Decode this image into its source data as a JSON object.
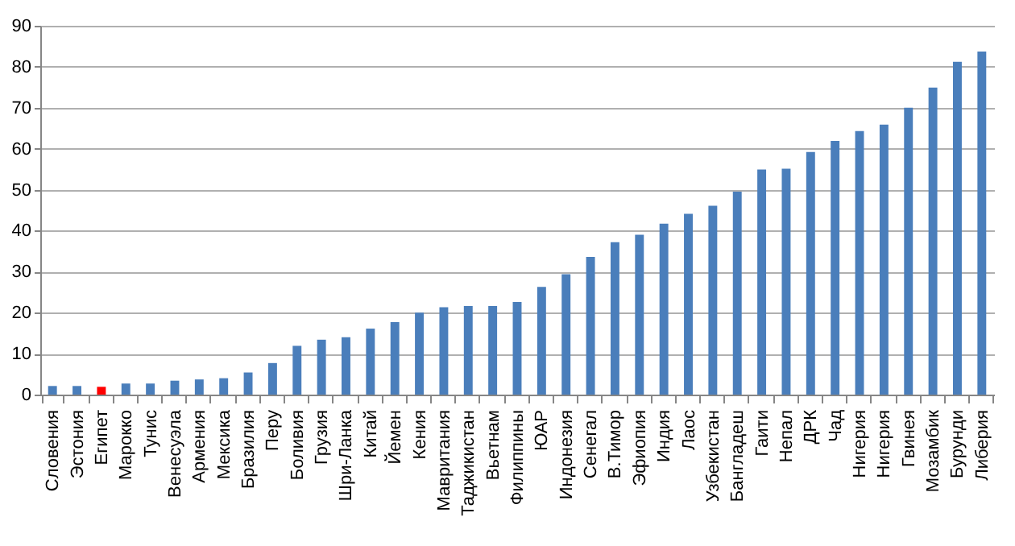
{
  "chart_data": {
    "type": "bar",
    "categories": [
      "Словения",
      "Эстония",
      "Египет",
      "Марокко",
      "Тунис",
      "Венесуэла",
      "Армения",
      "Мексика",
      "Бразилия",
      "Перу",
      "Боливия",
      "Грузия",
      "Шри-Ланка",
      "Китай",
      "Йемен",
      "Кения",
      "Мавритания",
      "Таджикистан",
      "Вьетнам",
      "Филиппины",
      "ЮАР",
      "Индонезия",
      "Сенегал",
      "В.Тимор",
      "Эфиопия",
      "Индия",
      "Лаос",
      "Узбекистан",
      "Бангладеш",
      "Гаити",
      "Непал",
      "ДРК",
      "Чад",
      "Нигерия",
      "Нигерия",
      "Гвинея",
      "Мозамбик",
      "Бурунди",
      "Либерия"
    ],
    "values": [
      2.1,
      2.1,
      1.9,
      2.7,
      2.7,
      3.4,
      3.7,
      4.0,
      5.4,
      7.7,
      11.9,
      13.4,
      14.0,
      16.1,
      17.7,
      20.0,
      21.3,
      21.6,
      21.6,
      22.6,
      26.3,
      29.4,
      33.6,
      37.2,
      39.0,
      41.7,
      44.1,
      46.1,
      49.5,
      54.9,
      55.1,
      59.2,
      61.9,
      64.3,
      65.9,
      70.0,
      74.9,
      81.2,
      83.7
    ],
    "colors": [
      "#4a7ebb",
      "#4a7ebb",
      "#ff0000",
      "#4a7ebb",
      "#4a7ebb",
      "#4a7ebb",
      "#4a7ebb",
      "#4a7ebb",
      "#4a7ebb",
      "#4a7ebb",
      "#4a7ebb",
      "#4a7ebb",
      "#4a7ebb",
      "#4a7ebb",
      "#4a7ebb",
      "#4a7ebb",
      "#4a7ebb",
      "#4a7ebb",
      "#4a7ebb",
      "#4a7ebb",
      "#4a7ebb",
      "#4a7ebb",
      "#4a7ebb",
      "#4a7ebb",
      "#4a7ebb",
      "#4a7ebb",
      "#4a7ebb",
      "#4a7ebb",
      "#4a7ebb",
      "#4a7ebb",
      "#4a7ebb",
      "#4a7ebb",
      "#4a7ebb",
      "#4a7ebb",
      "#4a7ebb",
      "#4a7ebb",
      "#4a7ebb",
      "#4a7ebb",
      "#4a7ebb"
    ],
    "ylim": [
      0,
      90
    ],
    "yticks": [
      0,
      10,
      20,
      30,
      40,
      50,
      60,
      70,
      80,
      90
    ],
    "grid": "y"
  }
}
